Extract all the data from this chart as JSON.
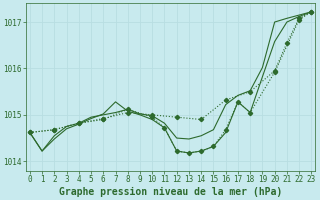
{
  "xlabel": "Graphe pression niveau de la mer (hPa)",
  "bg_color": "#c8eaee",
  "grid_color": "#b8dde2",
  "line_color": "#2d6a2d",
  "ylim": [
    1013.8,
    1017.4
  ],
  "xlim": [
    -0.3,
    23.3
  ],
  "yticks": [
    1014,
    1015,
    1016,
    1017
  ],
  "xticks": [
    0,
    1,
    2,
    3,
    4,
    5,
    6,
    7,
    8,
    9,
    10,
    11,
    12,
    13,
    14,
    15,
    16,
    17,
    18,
    19,
    20,
    21,
    22,
    23
  ],
  "line1_x": [
    0,
    1,
    2,
    3,
    4,
    5,
    6,
    7,
    8,
    9,
    10,
    11,
    12,
    13,
    14,
    15,
    16,
    17,
    18,
    19,
    20,
    21,
    22,
    23
  ],
  "line1_y": [
    1014.62,
    1014.22,
    1014.48,
    1014.7,
    1014.8,
    1014.92,
    1015.02,
    1015.28,
    1015.08,
    1015.0,
    1014.9,
    1014.72,
    1014.22,
    1014.18,
    1014.22,
    1014.32,
    1014.62,
    1015.28,
    1015.05,
    1015.82,
    1016.58,
    1017.0,
    1017.12,
    1017.22
  ],
  "line2_x": [
    0,
    1,
    2,
    3,
    4,
    5,
    6,
    7,
    8,
    9,
    10,
    11,
    12,
    13,
    14,
    15,
    16,
    17,
    18,
    19,
    20,
    21,
    22,
    23
  ],
  "line2_y": [
    1014.62,
    1014.22,
    1014.55,
    1014.75,
    1014.82,
    1014.95,
    1015.0,
    1015.05,
    1015.12,
    1015.02,
    1014.98,
    1014.82,
    1014.5,
    1014.48,
    1014.55,
    1014.68,
    1015.22,
    1015.42,
    1015.52,
    1016.02,
    1017.0,
    1017.08,
    1017.15,
    1017.22
  ],
  "line3_x": [
    0,
    2,
    4,
    6,
    8,
    10,
    12,
    14,
    16,
    18,
    20,
    21,
    22,
    23
  ],
  "line3_y": [
    1014.62,
    1014.68,
    1014.82,
    1014.92,
    1015.05,
    1015.0,
    1014.95,
    1014.9,
    1015.32,
    1015.5,
    1015.95,
    1016.55,
    1017.08,
    1017.22
  ],
  "line4_x": [
    0,
    2,
    4,
    6,
    8,
    10,
    11,
    12,
    13,
    14,
    15,
    16,
    17,
    18,
    20,
    22,
    23
  ],
  "line4_y": [
    1014.62,
    1014.68,
    1014.82,
    1014.9,
    1015.12,
    1014.95,
    1014.72,
    1014.22,
    1014.18,
    1014.22,
    1014.32,
    1014.68,
    1015.28,
    1015.05,
    1015.92,
    1017.05,
    1017.22
  ],
  "marker_style": "D",
  "marker_size": 2.2,
  "line_width": 0.8,
  "xlabel_fontsize": 7,
  "tick_fontsize": 5.5,
  "xlabel_color": "#2d6a2d",
  "tick_color": "#2d6a2d",
  "spine_color": "#2d6a2d"
}
